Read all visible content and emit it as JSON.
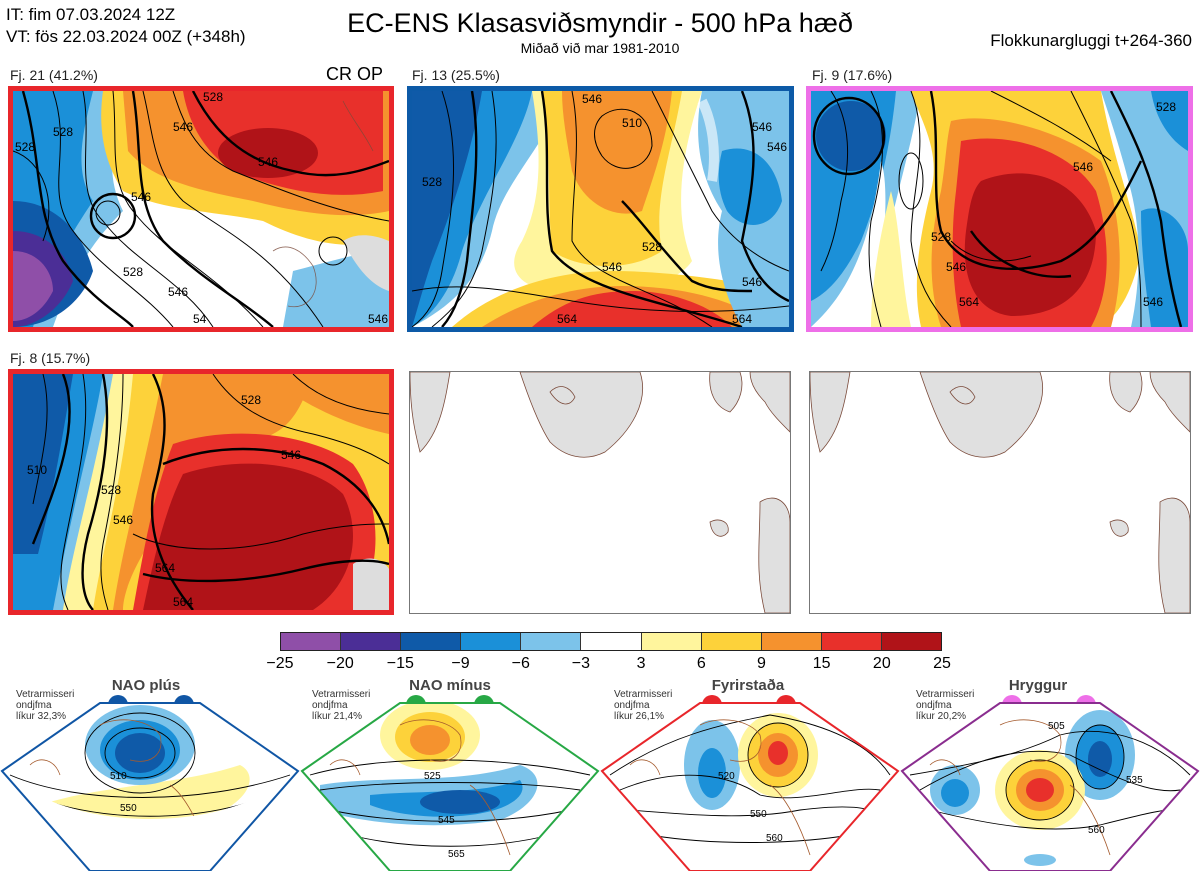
{
  "header": {
    "it_line": "IT: fim 07.03.2024 12Z",
    "vt_line": "VT: fös 22.03.2024 00Z  (+348h)",
    "title": "EC-ENS Klasasviðsmyndir - 500 hPa hæð",
    "subtitle": "Miðað við mar 1981-2010",
    "window": "Flokkunargluggi t+264-360"
  },
  "clusters": [
    {
      "label": "Fj. 21 (41.2%)",
      "tag": "CR OP",
      "frame_color": "#e8262b",
      "contours": [
        "528",
        "546",
        "546",
        "528",
        "546",
        "54",
        "546",
        "528",
        "528",
        "546"
      ]
    },
    {
      "label": "Fj. 13 (25.5%)",
      "tag": "",
      "frame_color": "#0d5aa7",
      "contours": [
        "528",
        "546",
        "510",
        "546",
        "528",
        "564",
        "564",
        "546",
        "546",
        "546"
      ]
    },
    {
      "label": "Fj. 9 (17.6%)",
      "tag": "",
      "frame_color": "#ee6fe8",
      "contours": [
        "528",
        "546",
        "546",
        "564",
        "546",
        "528"
      ]
    },
    {
      "label": "Fj. 8 (15.7%)",
      "tag": "",
      "frame_color": "#e8262b",
      "contours": [
        "510",
        "528",
        "528",
        "546",
        "546",
        "564",
        "564"
      ]
    }
  ],
  "colorbar": {
    "colors": [
      "#8f4fa8",
      "#4b2e96",
      "#0f5aa8",
      "#1b90d8",
      "#7cc3ea",
      "#ffffff",
      "#fff59d",
      "#fdd23a",
      "#f5922e",
      "#e8302b",
      "#b01318"
    ],
    "ticks": [
      "−25",
      "−20",
      "−15",
      "−9",
      "−6",
      "−3",
      "3",
      "6",
      "9",
      "15",
      "20",
      "25"
    ]
  },
  "regimes": [
    {
      "name": "NAO plús",
      "note_line1": "Vetrarmisseri",
      "note_line2": "ondjfma",
      "note_line3": "líkur 32,3%",
      "border_color": "#1056a5",
      "dot_colors": [
        "#1056a5",
        "#1056a5"
      ],
      "contours": [
        "510",
        "550"
      ]
    },
    {
      "name": "NAO mínus",
      "note_line1": "Vetrarmisseri",
      "note_line2": "ondjfma",
      "note_line3": "líkur 21,4%",
      "border_color": "#27a845",
      "dot_colors": [
        "#27a845",
        "#27a845"
      ],
      "contours": [
        "525",
        "545",
        "565"
      ]
    },
    {
      "name": "Fyrirstaða",
      "note_line1": "Vetrarmisseri",
      "note_line2": "ondjfma",
      "note_line3": "líkur 26,1%",
      "border_color": "#e8262b",
      "dot_colors": [
        "#e8262b",
        "#e8262b"
      ],
      "contours": [
        "520",
        "550",
        "560"
      ]
    },
    {
      "name": "Hryggur",
      "note_line1": "Vetrarmisseri",
      "note_line2": "ondjfma",
      "note_line3": "líkur 20,2%",
      "border_color": "#8a2d8f",
      "dot_colors": [
        "#ee6fe8",
        "#ee6fe8"
      ],
      "contours": [
        "505",
        "535",
        "560"
      ]
    }
  ]
}
